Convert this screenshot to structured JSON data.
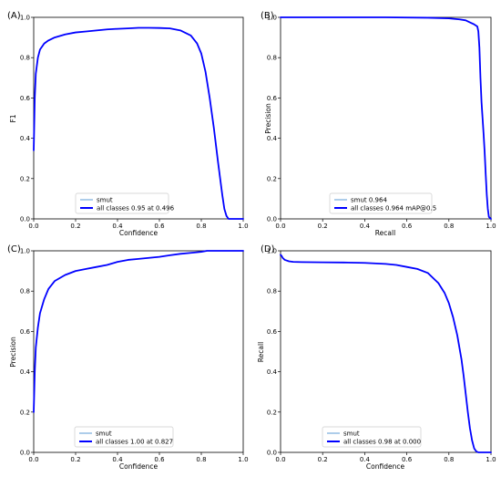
{
  "chart_data": [
    {
      "type": "line",
      "panel_label": "(A)",
      "xlabel": "Confidence",
      "ylabel": "F1",
      "xlim": [
        0,
        1
      ],
      "ylim": [
        0,
        1
      ],
      "xticks": [
        "0.0",
        "0.2",
        "0.4",
        "0.6",
        "0.8",
        "1.0"
      ],
      "yticks": [
        "0.0",
        "0.2",
        "0.4",
        "0.6",
        "0.8",
        "1.0"
      ],
      "legend_position": "lower-center",
      "series": [
        {
          "name": "smut",
          "color": "#5b9bd5",
          "x": [],
          "y": []
        },
        {
          "name": "all classes 0.95 at 0.496",
          "color": "#0000ff",
          "x": [
            0.0,
            0.005,
            0.01,
            0.02,
            0.03,
            0.05,
            0.07,
            0.1,
            0.15,
            0.2,
            0.25,
            0.3,
            0.35,
            0.4,
            0.45,
            0.5,
            0.55,
            0.6,
            0.65,
            0.7,
            0.75,
            0.78,
            0.8,
            0.82,
            0.84,
            0.86,
            0.88,
            0.9,
            0.91,
            0.92,
            0.93,
            0.94,
            0.95,
            1.0
          ],
          "y": [
            0.34,
            0.6,
            0.72,
            0.8,
            0.84,
            0.87,
            0.885,
            0.9,
            0.915,
            0.925,
            0.93,
            0.935,
            0.94,
            0.943,
            0.945,
            0.948,
            0.948,
            0.947,
            0.945,
            0.935,
            0.91,
            0.87,
            0.82,
            0.73,
            0.6,
            0.45,
            0.28,
            0.12,
            0.05,
            0.015,
            0.0,
            0.0,
            0.0,
            0.0
          ]
        }
      ]
    },
    {
      "type": "line",
      "panel_label": "(B)",
      "xlabel": "Recall",
      "ylabel": "Precision",
      "xlim": [
        0,
        1
      ],
      "ylim": [
        0,
        1
      ],
      "xticks": [
        "0.0",
        "0.2",
        "0.4",
        "0.6",
        "0.8",
        "1.0"
      ],
      "yticks": [
        "0.0",
        "0.2",
        "0.4",
        "0.6",
        "0.8",
        "1.0"
      ],
      "legend_position": "lower-center",
      "series": [
        {
          "name": "smut 0.964",
          "color": "#5b9bd5",
          "x": [],
          "y": []
        },
        {
          "name": "all classes 0.964 mAP@0.5",
          "color": "#0000ff",
          "x": [
            0.0,
            0.1,
            0.3,
            0.5,
            0.7,
            0.8,
            0.85,
            0.88,
            0.9,
            0.92,
            0.935,
            0.94,
            0.945,
            0.95,
            0.955,
            0.96,
            0.965,
            0.97,
            0.975,
            0.98,
            0.985,
            0.99,
            1.0
          ],
          "y": [
            1.0,
            1.0,
            1.0,
            1.0,
            0.998,
            0.995,
            0.99,
            0.985,
            0.975,
            0.965,
            0.955,
            0.93,
            0.85,
            0.7,
            0.58,
            0.5,
            0.42,
            0.33,
            0.22,
            0.12,
            0.05,
            0.01,
            0.0
          ]
        }
      ]
    },
    {
      "type": "line",
      "panel_label": "(C)",
      "xlabel": "Confidence",
      "ylabel": "Precision",
      "xlim": [
        0,
        1
      ],
      "ylim": [
        0,
        1
      ],
      "xticks": [
        "0.0",
        "0.2",
        "0.4",
        "0.6",
        "0.8",
        "1.0"
      ],
      "yticks": [
        "0.0",
        "0.2",
        "0.4",
        "0.6",
        "0.8",
        "1.0"
      ],
      "legend_position": "lower-center",
      "series": [
        {
          "name": "smut",
          "color": "#5b9bd5",
          "x": [],
          "y": []
        },
        {
          "name": "all classes 1.00 at 0.827",
          "color": "#0000ff",
          "x": [
            0.0,
            0.005,
            0.01,
            0.02,
            0.03,
            0.05,
            0.07,
            0.1,
            0.15,
            0.2,
            0.25,
            0.3,
            0.35,
            0.4,
            0.45,
            0.5,
            0.55,
            0.6,
            0.65,
            0.7,
            0.75,
            0.8,
            0.827,
            0.85,
            0.9,
            0.95,
            1.0
          ],
          "y": [
            0.2,
            0.4,
            0.52,
            0.62,
            0.69,
            0.76,
            0.81,
            0.85,
            0.88,
            0.9,
            0.91,
            0.92,
            0.93,
            0.945,
            0.955,
            0.96,
            0.965,
            0.97,
            0.978,
            0.985,
            0.99,
            0.995,
            1.0,
            1.0,
            1.0,
            1.0,
            1.0
          ]
        }
      ]
    },
    {
      "type": "line",
      "panel_label": "(D)",
      "xlabel": "Confidence",
      "ylabel": "Recall",
      "xlim": [
        0,
        1
      ],
      "ylim": [
        0,
        1
      ],
      "xticks": [
        "0.0",
        "0.2",
        "0.4",
        "0.6",
        "0.8",
        "1.0"
      ],
      "yticks": [
        "0.0",
        "0.2",
        "0.4",
        "0.6",
        "0.8",
        "1.0"
      ],
      "legend_position": "lower-center",
      "series": [
        {
          "name": "smut",
          "color": "#5b9bd5",
          "x": [],
          "y": []
        },
        {
          "name": "all classes 0.98 at 0.000",
          "color": "#0000ff",
          "x": [
            0.0,
            0.005,
            0.01,
            0.02,
            0.04,
            0.06,
            0.1,
            0.2,
            0.3,
            0.4,
            0.5,
            0.55,
            0.6,
            0.65,
            0.7,
            0.72,
            0.75,
            0.78,
            0.8,
            0.82,
            0.84,
            0.86,
            0.87,
            0.88,
            0.89,
            0.9,
            0.91,
            0.92,
            0.93,
            0.94,
            0.95,
            1.0
          ],
          "y": [
            0.98,
            0.975,
            0.965,
            0.955,
            0.948,
            0.945,
            0.944,
            0.943,
            0.942,
            0.94,
            0.935,
            0.93,
            0.92,
            0.91,
            0.89,
            0.87,
            0.84,
            0.79,
            0.74,
            0.67,
            0.58,
            0.46,
            0.38,
            0.29,
            0.2,
            0.12,
            0.06,
            0.02,
            0.005,
            0.0,
            0.0,
            0.0
          ]
        }
      ]
    }
  ]
}
